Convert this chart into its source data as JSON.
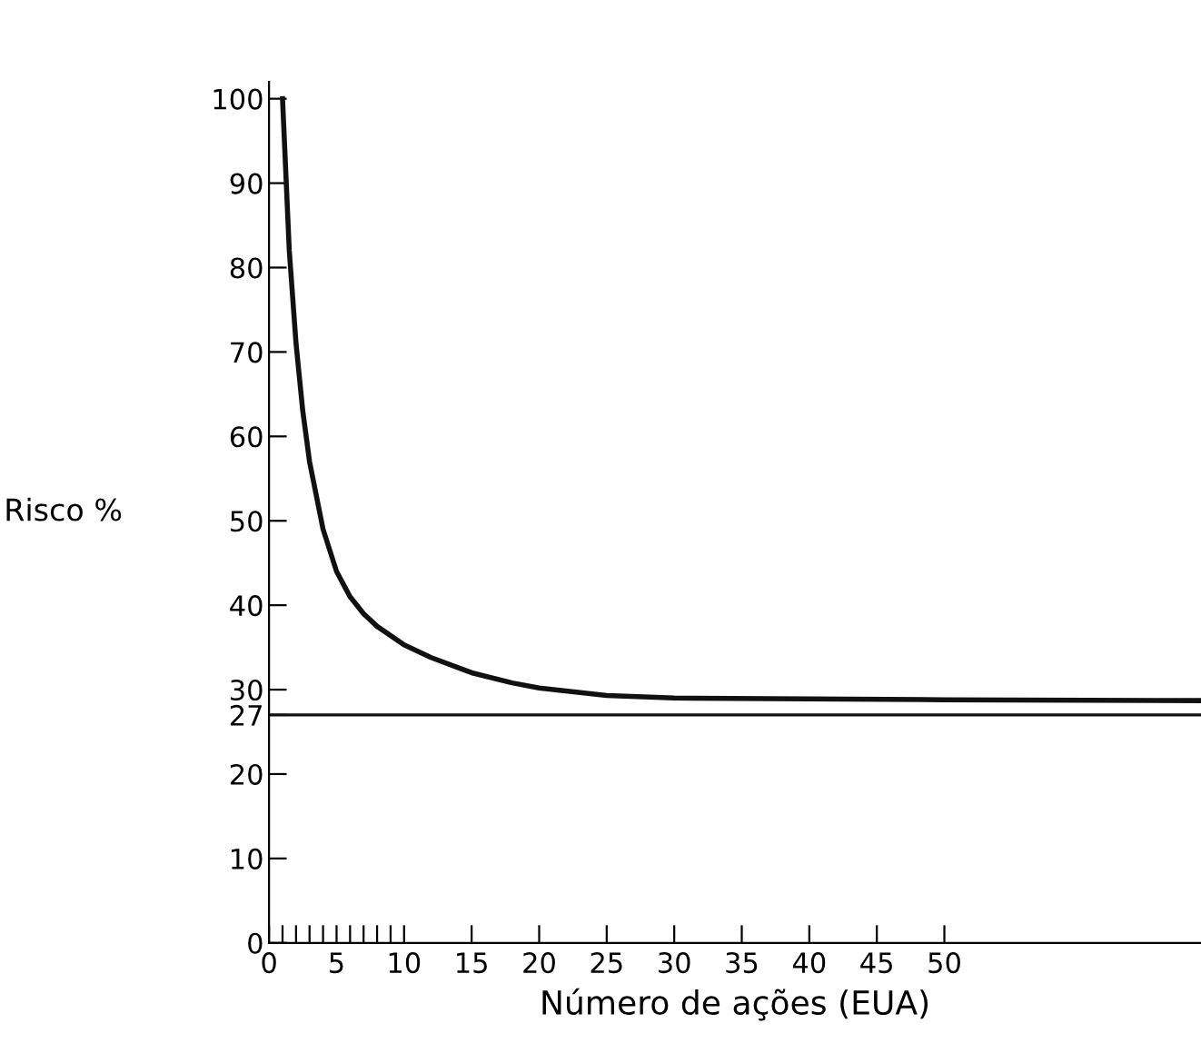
{
  "chart_data": {
    "type": "line",
    "xlabel": "Número de ações (EUA)",
    "ylabel": "Risco %",
    "x": [
      1,
      1.5,
      2,
      2.5,
      3,
      4,
      5,
      6,
      7,
      8,
      10,
      12,
      15,
      18,
      20,
      25,
      30,
      40,
      50,
      69
    ],
    "series": [
      {
        "color": "#111111",
        "values": [
          100,
          82,
          71,
          63,
          57,
          49,
          44,
          41,
          39,
          37.5,
          35.3,
          33.8,
          32,
          30.8,
          30.2,
          29.3,
          29,
          28.9,
          28.8,
          28.7
        ]
      }
    ],
    "xlim": [
      0,
      69
    ],
    "ylim": [
      0,
      102
    ],
    "xticks": [
      0,
      {
        "value": 1,
        "label": null
      },
      {
        "value": 2,
        "label": null
      },
      {
        "value": 3,
        "label": null
      },
      {
        "value": 4,
        "label": null
      },
      5,
      {
        "value": 6,
        "label": null
      },
      {
        "value": 7,
        "label": null
      },
      {
        "value": 8,
        "label": null
      },
      {
        "value": 9,
        "label": null
      },
      10,
      15,
      20,
      25,
      30,
      35,
      40,
      45,
      50
    ],
    "yticks": [
      0,
      10,
      20,
      27,
      30,
      40,
      50,
      60,
      70,
      80,
      90,
      100
    ],
    "ref_lines": [
      {
        "axis": "y",
        "value": 27,
        "color": "#111111",
        "line_style": "solid"
      }
    ],
    "grid": false,
    "legend": false,
    "marker": "none",
    "line_style": "solid"
  }
}
